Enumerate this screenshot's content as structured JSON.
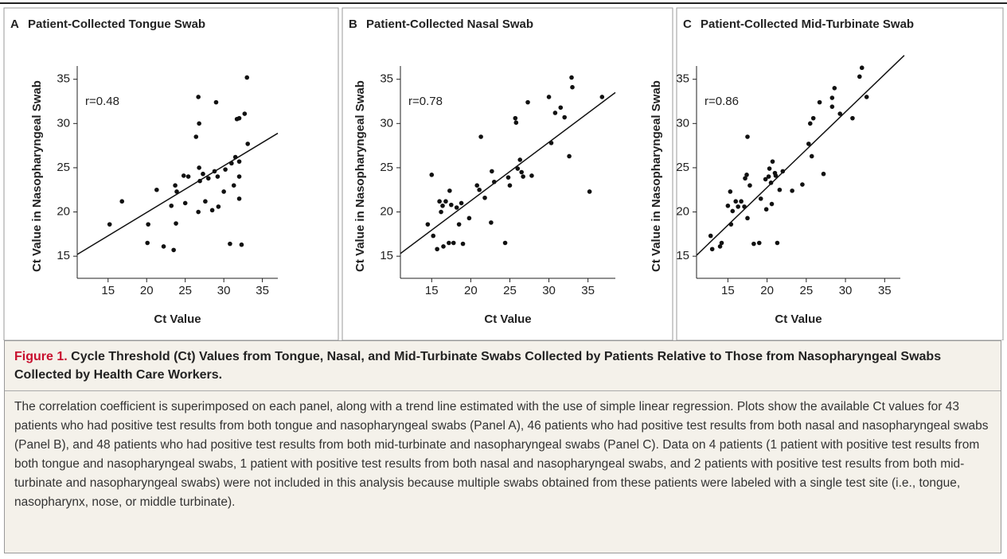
{
  "chart_data": [
    {
      "type": "scatter",
      "panel": "A",
      "title": "Patient-Collected Tongue Swab",
      "x_label": "Ct Value",
      "y_label": "Ct Value in Nasopharyngeal Swab",
      "annotation": "r=0.48",
      "color": "#111111",
      "xlim": [
        11,
        37
      ],
      "ylim": [
        12.5,
        36.5
      ],
      "xticks": [
        15,
        20,
        25,
        30,
        35
      ],
      "yticks": [
        15,
        20,
        25,
        30,
        35
      ],
      "trend_line": {
        "x": [
          11,
          37
        ],
        "y": [
          15.2,
          28.9
        ]
      },
      "x": [
        15.2,
        16.8,
        20.1,
        20.2,
        21.3,
        22.2,
        23.2,
        23.5,
        23.7,
        23.8,
        23.9,
        24.8,
        25.0,
        26.4,
        26.7,
        26.8,
        26.8,
        26.7,
        26.9,
        27.3,
        27.6,
        28.0,
        28.5,
        28.8,
        29.0,
        29.2,
        29.3,
        30.0,
        30.2,
        30.8,
        31.3,
        31.5,
        31.7,
        32.0,
        32.0,
        32.0,
        32.0,
        32.3,
        32.7,
        33.0,
        33.1,
        31.0,
        25.4
      ],
      "values": [
        18.6,
        21.2,
        16.5,
        18.6,
        22.5,
        16.1,
        20.7,
        15.7,
        23.0,
        18.7,
        22.3,
        24.1,
        21.0,
        28.5,
        33.0,
        30.0,
        25.0,
        20.0,
        23.5,
        24.3,
        21.2,
        23.8,
        20.2,
        24.6,
        32.4,
        24.0,
        20.6,
        22.3,
        24.8,
        16.4,
        23.0,
        26.2,
        30.5,
        30.6,
        25.7,
        24.0,
        21.5,
        16.3,
        31.1,
        35.2,
        27.7,
        25.5,
        24.0
      ]
    },
    {
      "type": "scatter",
      "panel": "B",
      "title": "Patient-Collected Nasal Swab",
      "x_label": "Ct Value",
      "y_label": "Ct Value in Nasopharyngeal Swab",
      "annotation": "r=0.78",
      "color": "#111111",
      "xlim": [
        11,
        38.5
      ],
      "ylim": [
        12.5,
        36.5
      ],
      "xticks": [
        15,
        20,
        25,
        30,
        35
      ],
      "yticks": [
        15,
        20,
        25,
        30,
        35
      ],
      "trend_line": {
        "x": [
          11,
          38.5
        ],
        "y": [
          15.3,
          33.5
        ]
      },
      "x": [
        14.5,
        15.0,
        15.2,
        15.7,
        16.0,
        16.2,
        16.4,
        16.5,
        16.8,
        17.2,
        17.3,
        17.5,
        17.8,
        18.2,
        18.5,
        18.8,
        19.0,
        19.8,
        20.8,
        21.1,
        21.3,
        21.8,
        22.6,
        22.7,
        23.0,
        24.4,
        24.8,
        25.0,
        25.7,
        25.8,
        26.0,
        26.3,
        26.5,
        26.7,
        27.3,
        27.8,
        30.0,
        30.3,
        30.8,
        31.5,
        32.0,
        32.6,
        32.9,
        33.0,
        35.2,
        36.8
      ],
      "values": [
        18.6,
        24.2,
        17.3,
        15.8,
        21.2,
        20.0,
        20.7,
        16.1,
        21.2,
        16.5,
        22.4,
        20.8,
        16.5,
        20.5,
        18.6,
        21.0,
        16.4,
        19.3,
        23.0,
        22.5,
        28.5,
        21.6,
        18.8,
        24.6,
        23.4,
        16.5,
        23.9,
        23.0,
        30.6,
        30.1,
        24.9,
        25.9,
        24.5,
        24.0,
        32.4,
        24.1,
        33.0,
        27.8,
        31.2,
        31.8,
        30.7,
        26.3,
        35.2,
        34.1,
        22.3,
        33.0
      ]
    },
    {
      "type": "scatter",
      "panel": "C",
      "title": "Patient-Collected Mid-Turbinate Swab",
      "x_label": "Ct Value",
      "y_label": "Ct Value in Nasopharyngeal Swab",
      "annotation": "r=0.86",
      "color": "#111111",
      "xlim": [
        11,
        37
      ],
      "ylim": [
        12.5,
        36.5
      ],
      "xticks": [
        15,
        20,
        25,
        30,
        35
      ],
      "yticks": [
        15,
        20,
        25,
        30,
        35
      ],
      "trend_line": {
        "x": [
          11,
          37.5
        ],
        "y": [
          15.1,
          37.7
        ]
      },
      "x": [
        12.8,
        13.0,
        14.0,
        14.2,
        15.0,
        15.3,
        15.4,
        15.6,
        16.0,
        16.3,
        16.7,
        17.1,
        17.2,
        17.4,
        17.5,
        17.5,
        17.8,
        18.3,
        19.0,
        19.2,
        19.8,
        19.9,
        20.2,
        20.3,
        20.5,
        20.6,
        20.7,
        21.0,
        21.1,
        21.3,
        21.6,
        22.0,
        23.2,
        24.5,
        25.3,
        25.5,
        25.7,
        25.9,
        26.7,
        27.2,
        28.3,
        28.3,
        28.6,
        29.3,
        30.9,
        31.8,
        32.1,
        32.7
      ],
      "values": [
        17.3,
        15.8,
        16.1,
        16.5,
        20.7,
        22.3,
        18.6,
        20.1,
        21.2,
        20.6,
        21.2,
        20.6,
        23.8,
        24.2,
        28.5,
        19.3,
        23.0,
        16.4,
        16.5,
        21.5,
        23.7,
        20.3,
        24.0,
        24.9,
        23.3,
        20.9,
        25.7,
        24.4,
        24.1,
        16.5,
        22.5,
        24.6,
        22.4,
        23.1,
        27.7,
        30.0,
        26.3,
        30.6,
        32.4,
        24.3,
        31.9,
        32.9,
        34.0,
        31.1,
        30.6,
        35.3,
        36.3,
        33.0
      ]
    }
  ],
  "figure": {
    "label": "Figure 1.",
    "title": "Cycle Threshold (Ct) Values from Tongue, Nasal, and Mid-Turbinate Swabs Collected by Patients Relative to Those from Nasopharyngeal Swabs Collected by Health Care Workers.",
    "caption": "The correlation coefficient is superimposed on each panel, along with a trend line estimated with the use of simple linear regression. Plots show the available Ct values for 43 patients who had positive test results from both tongue and nasopharyngeal swabs (Panel A), 46 patients who had positive test results from both nasal and nasopharyngeal swabs (Panel B), and 48 patients who had positive test results from both mid-turbinate and nasopharyngeal swabs (Panel C). Data on 4 patients (1 patient with positive test results from both tongue and nasopharyngeal swabs, 1 patient with positive test results from both nasal and nasopharyngeal swabs, and 2 patients with positive test results from both mid-turbinate and nasopharyngeal swabs) were not included in this analysis because multiple swabs obtained from these patients were labeled with a single test site (i.e., tongue, nasopharynx, nose, or middle turbinate)."
  }
}
